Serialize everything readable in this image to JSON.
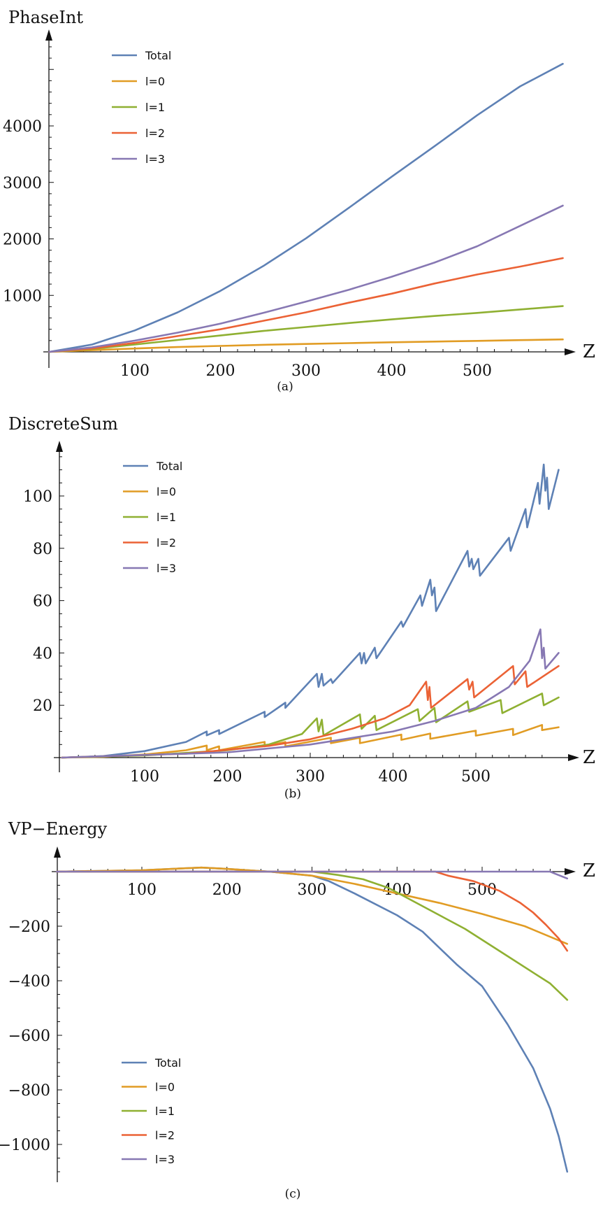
{
  "colors": {
    "Total": "#5E81B5",
    "l=0": "#E19C24",
    "l=1": "#8FB032",
    "l=2": "#EB6235",
    "l=3": "#8778B3"
  },
  "chart_data": [
    {
      "id": "a",
      "type": "line",
      "title": "PhaseInt",
      "xlabel": "Z",
      "ylabel": "",
      "caption": "(a)",
      "xlim": [
        0,
        600
      ],
      "ylim": [
        -50,
        5500
      ],
      "xticks": [
        100,
        200,
        300,
        400,
        500
      ],
      "yticks": [
        1000,
        2000,
        3000,
        4000
      ],
      "legend_position": "top-left",
      "x": [
        0,
        50,
        100,
        150,
        200,
        250,
        300,
        350,
        400,
        450,
        500,
        550,
        600
      ],
      "series": [
        {
          "name": "Total",
          "values": [
            0,
            130,
            380,
            700,
            1080,
            1520,
            2010,
            2550,
            3100,
            3640,
            4190,
            4700,
            5100
          ]
        },
        {
          "name": "l=0",
          "values": [
            0,
            30,
            60,
            85,
            105,
            125,
            140,
            155,
            170,
            182,
            195,
            208,
            220
          ]
        },
        {
          "name": "l=1",
          "values": [
            0,
            50,
            130,
            210,
            290,
            370,
            440,
            510,
            575,
            635,
            690,
            750,
            810
          ]
        },
        {
          "name": "l=2",
          "values": [
            0,
            60,
            160,
            280,
            400,
            550,
            700,
            870,
            1030,
            1210,
            1370,
            1510,
            1660
          ]
        },
        {
          "name": "l=3",
          "values": [
            0,
            80,
            200,
            340,
            500,
            690,
            890,
            1100,
            1330,
            1580,
            1870,
            2230,
            2590
          ]
        }
      ]
    },
    {
      "id": "b",
      "type": "line",
      "title": "DiscreteSum",
      "xlabel": "Z",
      "ylabel": "",
      "caption": "(b)",
      "xlim": [
        0,
        600
      ],
      "ylim": [
        -1,
        115
      ],
      "xticks": [
        100,
        200,
        300,
        400,
        500
      ],
      "yticks": [
        20,
        40,
        60,
        80,
        100
      ],
      "legend_position": "top-left",
      "series": [
        {
          "name": "Total",
          "points": [
            [
              0,
              0
            ],
            [
              50,
              0.6
            ],
            [
              100,
              2.5
            ],
            [
              150,
              6
            ],
            [
              175,
              10
            ],
            [
              175,
              8.5
            ],
            [
              190,
              10.5
            ],
            [
              190,
              9
            ],
            [
              245,
              17.5
            ],
            [
              245,
              15.5
            ],
            [
              270,
              21
            ],
            [
              270,
              19
            ],
            [
              308,
              32
            ],
            [
              310,
              27
            ],
            [
              314,
              32
            ],
            [
              316,
              27.5
            ],
            [
              325,
              30
            ],
            [
              327,
              28.5
            ],
            [
              360,
              40
            ],
            [
              362,
              36
            ],
            [
              365,
              40
            ],
            [
              367,
              36
            ],
            [
              378,
              42
            ],
            [
              380,
              38
            ],
            [
              410,
              52
            ],
            [
              412,
              50
            ],
            [
              433,
              62
            ],
            [
              435,
              58
            ],
            [
              445,
              68
            ],
            [
              447,
              62
            ],
            [
              450,
              65
            ],
            [
              452,
              56
            ],
            [
              490,
              79
            ],
            [
              492,
              73
            ],
            [
              495,
              76
            ],
            [
              497,
              72
            ],
            [
              503,
              76
            ],
            [
              505,
              69.5
            ],
            [
              540,
              84
            ],
            [
              542,
              79
            ],
            [
              560,
              95
            ],
            [
              562,
              88
            ],
            [
              575,
              105
            ],
            [
              577,
              97
            ],
            [
              582,
              112
            ],
            [
              584,
              102
            ],
            [
              586,
              107
            ],
            [
              588,
              95
            ],
            [
              600,
              110
            ]
          ]
        },
        {
          "name": "l=0",
          "points": [
            [
              0,
              0
            ],
            [
              50,
              0.3
            ],
            [
              100,
              1.2
            ],
            [
              150,
              2.8
            ],
            [
              175,
              4.6
            ],
            [
              175,
              2.8
            ],
            [
              190,
              4.3
            ],
            [
              190,
              2.8
            ],
            [
              245,
              6
            ],
            [
              245,
              4.3
            ],
            [
              270,
              6
            ],
            [
              270,
              4.3
            ],
            [
              325,
              7.6
            ],
            [
              325,
              5.5
            ],
            [
              360,
              7.6
            ],
            [
              360,
              5.5
            ],
            [
              410,
              8.8
            ],
            [
              410,
              6.8
            ],
            [
              445,
              9.2
            ],
            [
              445,
              7.2
            ],
            [
              500,
              10.3
            ],
            [
              500,
              8.4
            ],
            [
              545,
              11
            ],
            [
              545,
              8.6
            ],
            [
              580,
              12.5
            ],
            [
              580,
              10.5
            ],
            [
              600,
              11.6
            ]
          ]
        },
        {
          "name": "l=1",
          "points": [
            [
              0,
              0
            ],
            [
              100,
              0.8
            ],
            [
              200,
              2.8
            ],
            [
              250,
              5
            ],
            [
              290,
              9
            ],
            [
              308,
              15
            ],
            [
              310,
              10
            ],
            [
              314,
              14.5
            ],
            [
              316,
              8.5
            ],
            [
              360,
              16.5
            ],
            [
              362,
              11
            ],
            [
              378,
              16
            ],
            [
              380,
              10.5
            ],
            [
              430,
              18.5
            ],
            [
              432,
              14
            ],
            [
              450,
              19
            ],
            [
              452,
              13.5
            ],
            [
              490,
              21.5
            ],
            [
              492,
              17.5
            ],
            [
              530,
              22
            ],
            [
              532,
              17
            ],
            [
              580,
              24.5
            ],
            [
              582,
              20
            ],
            [
              600,
              23
            ]
          ]
        },
        {
          "name": "l=2",
          "points": [
            [
              0,
              0
            ],
            [
              150,
              1.5
            ],
            [
              250,
              4.5
            ],
            [
              300,
              7
            ],
            [
              350,
              11
            ],
            [
              390,
              15
            ],
            [
              420,
              20
            ],
            [
              440,
              29
            ],
            [
              442,
              22
            ],
            [
              444,
              27
            ],
            [
              446,
              19
            ],
            [
              490,
              30
            ],
            [
              492,
              26
            ],
            [
              496,
              29
            ],
            [
              498,
              23
            ],
            [
              545,
              35
            ],
            [
              547,
              28
            ],
            [
              560,
              33
            ],
            [
              562,
              27
            ],
            [
              600,
              35
            ]
          ]
        },
        {
          "name": "l=3",
          "points": [
            [
              0,
              0
            ],
            [
              200,
              2
            ],
            [
              300,
              5
            ],
            [
              400,
              10
            ],
            [
              450,
              14
            ],
            [
              500,
              19
            ],
            [
              540,
              27
            ],
            [
              565,
              37
            ],
            [
              578,
              49
            ],
            [
              580,
              38
            ],
            [
              582,
              42
            ],
            [
              584,
              34
            ],
            [
              600,
              40
            ]
          ]
        }
      ]
    },
    {
      "id": "c",
      "type": "line",
      "title": "VP−Energy",
      "xlabel": "Z",
      "ylabel": "",
      "caption": "(c)",
      "xlim": [
        0,
        600
      ],
      "ylim": [
        -1130,
        60
      ],
      "xticks": [
        100,
        200,
        300,
        400,
        500
      ],
      "yticks": [
        -200,
        -400,
        -600,
        -800,
        -1000
      ],
      "legend_position": "bottom-left",
      "series": [
        {
          "name": "Total",
          "points": [
            [
              0,
              0
            ],
            [
              100,
              5
            ],
            [
              170,
              15
            ],
            [
              200,
              10
            ],
            [
              250,
              0
            ],
            [
              300,
              -15
            ],
            [
              320,
              -35
            ],
            [
              350,
              -80
            ],
            [
              400,
              -160
            ],
            [
              430,
              -220
            ],
            [
              450,
              -280
            ],
            [
              470,
              -340
            ],
            [
              500,
              -420
            ],
            [
              530,
              -560
            ],
            [
              560,
              -720
            ],
            [
              580,
              -870
            ],
            [
              590,
              -970
            ],
            [
              600,
              -1100
            ]
          ]
        },
        {
          "name": "l=0",
          "points": [
            [
              0,
              0
            ],
            [
              100,
              5
            ],
            [
              170,
              15
            ],
            [
              200,
              10
            ],
            [
              250,
              0
            ],
            [
              300,
              -15
            ],
            [
              350,
              -45
            ],
            [
              400,
              -80
            ],
            [
              450,
              -115
            ],
            [
              500,
              -155
            ],
            [
              550,
              -200
            ],
            [
              600,
              -265
            ]
          ]
        },
        {
          "name": "l=1",
          "points": [
            [
              0,
              0
            ],
            [
              300,
              0
            ],
            [
              330,
              -12
            ],
            [
              360,
              -28
            ],
            [
              390,
              -60
            ],
            [
              420,
              -110
            ],
            [
              450,
              -160
            ],
            [
              480,
              -210
            ],
            [
              500,
              -250
            ],
            [
              530,
              -310
            ],
            [
              560,
              -370
            ],
            [
              580,
              -410
            ],
            [
              600,
              -470
            ]
          ]
        },
        {
          "name": "l=2",
          "points": [
            [
              0,
              0
            ],
            [
              445,
              0
            ],
            [
              460,
              -15
            ],
            [
              490,
              -35
            ],
            [
              520,
              -70
            ],
            [
              545,
              -115
            ],
            [
              560,
              -150
            ],
            [
              575,
              -195
            ],
            [
              590,
              -245
            ],
            [
              600,
              -290
            ]
          ]
        },
        {
          "name": "l=3",
          "points": [
            [
              0,
              0
            ],
            [
              580,
              0
            ],
            [
              586,
              -8
            ],
            [
              600,
              -25
            ]
          ]
        }
      ]
    }
  ]
}
